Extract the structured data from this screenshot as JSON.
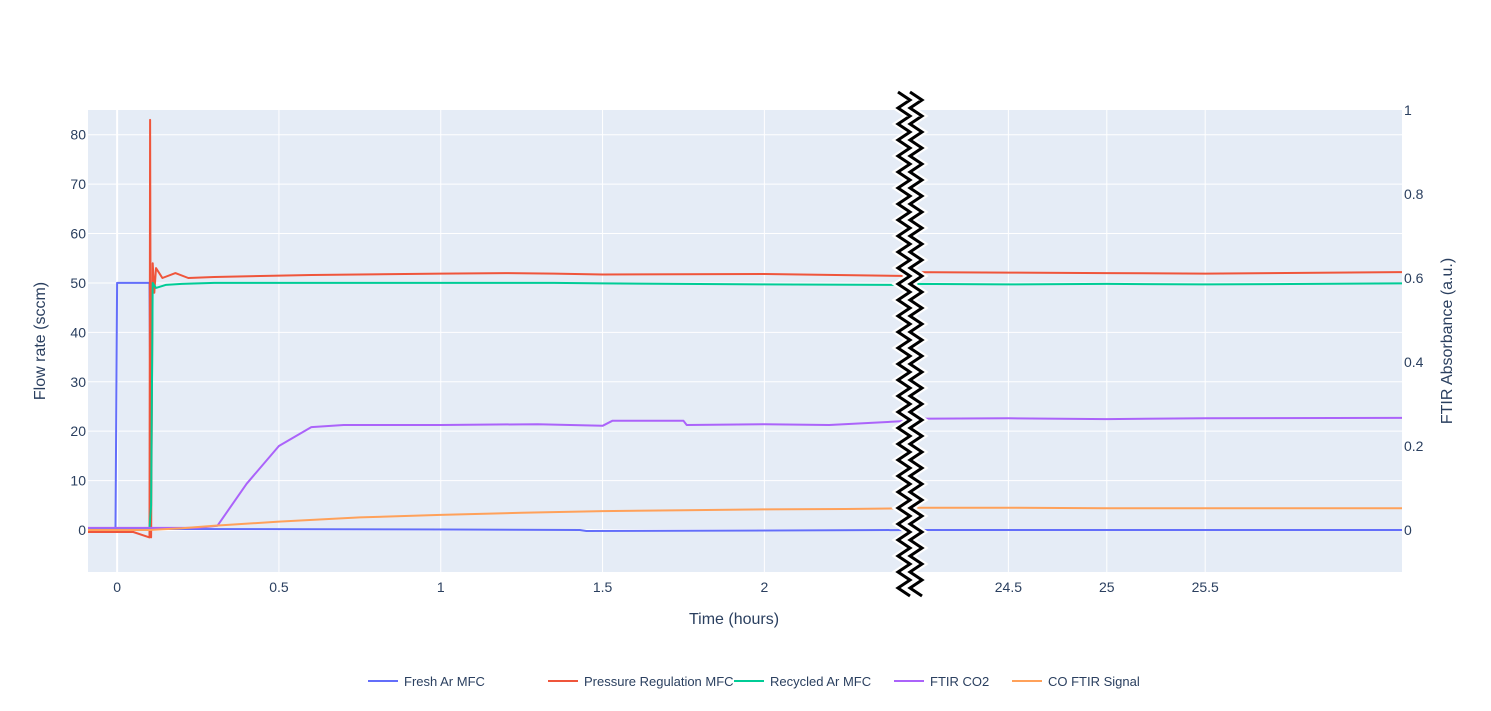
{
  "chart_data": {
    "type": "line",
    "xlabel": "Time (hours)",
    "ylabel": "Flow rate (sccm)",
    "y2label": "FTIR Absorbance (a.u.)",
    "ylim": [
      -8.5,
      85
    ],
    "y2lim": [
      -0.1,
      1.0
    ],
    "grid": true,
    "plot_background": "#e5ecf6",
    "legend_position": "bottom-center",
    "axis_break": "between 2.45 h and 24.0 h",
    "x_segments": [
      {
        "range": [
          -0.09,
          2.45
        ],
        "ticks": [
          0,
          0.5,
          1,
          1.5,
          2
        ],
        "tick_labels": [
          "0",
          "0.5",
          "1",
          "1.5",
          "2"
        ]
      },
      {
        "range": [
          24.0,
          26.5
        ],
        "ticks": [
          24.5,
          25,
          25.5
        ],
        "tick_labels": [
          "24.5",
          "25",
          "25.5"
        ]
      }
    ],
    "y_ticks": [
      0,
      10,
      20,
      30,
      40,
      50,
      60,
      70,
      80
    ],
    "y2_ticks": [
      0,
      0.2,
      0.4,
      0.6,
      0.8,
      1
    ],
    "y2_tick_labels": [
      "0",
      "0.2",
      "0.4",
      "0.6",
      "0.8",
      "1"
    ],
    "series": [
      {
        "name": "Fresh Ar MFC",
        "color": "#636efa",
        "axis": "y",
        "x": [
          -0.09,
          -0.005,
          0.0,
          0.1,
          0.105,
          0.11,
          1.0,
          1.43,
          1.45,
          2.45,
          24.0,
          25.5,
          26.5
        ],
        "y": [
          0.4,
          0.4,
          50,
          50,
          0.2,
          0.2,
          0.1,
          0.0,
          -0.2,
          0.0,
          0.0,
          0.0,
          0.0
        ]
      },
      {
        "name": "Pressure Regulation MFC",
        "color": "#ef553b",
        "axis": "y",
        "x": [
          -0.09,
          0.05,
          0.1,
          0.102,
          0.105,
          0.11,
          0.115,
          0.12,
          0.14,
          0.18,
          0.22,
          0.3,
          0.6,
          1.0,
          1.2,
          1.35,
          1.5,
          2.0,
          2.45,
          24.0,
          24.5,
          25.0,
          25.5,
          26.5
        ],
        "y": [
          -0.4,
          -0.4,
          -1.5,
          83,
          -1.5,
          54,
          48,
          53,
          51,
          52,
          51,
          51.2,
          51.6,
          51.9,
          52,
          51.9,
          51.7,
          51.8,
          51.4,
          52.2,
          52.1,
          52.0,
          51.9,
          52.2
        ]
      },
      {
        "name": "Recycled Ar MFC",
        "color": "#00cc96",
        "axis": "y",
        "x": [
          -0.09,
          0.1,
          0.105,
          0.11,
          0.12,
          0.15,
          0.2,
          0.3,
          0.6,
          1.0,
          1.2,
          1.35,
          1.5,
          2.0,
          2.45,
          24.0,
          24.5,
          25.0,
          25.5,
          26.5
        ],
        "y": [
          0.3,
          0.3,
          5,
          50,
          49,
          49.6,
          49.8,
          50,
          50,
          50,
          50,
          50,
          49.9,
          49.7,
          49.6,
          49.8,
          49.7,
          49.8,
          49.7,
          49.9
        ]
      },
      {
        "name": "FTIR CO2",
        "color": "#ab63fa",
        "axis": "y2",
        "x": [
          -0.09,
          0.25,
          0.31,
          0.4,
          0.5,
          0.6,
          0.7,
          1.0,
          1.3,
          1.5,
          1.53,
          1.75,
          1.76,
          2.0,
          2.2,
          2.45,
          24.0,
          24.5,
          25.0,
          25.5,
          26.5
        ],
        "y": [
          0.005,
          0.005,
          0.01,
          0.11,
          0.2,
          0.245,
          0.25,
          0.25,
          0.252,
          0.248,
          0.26,
          0.26,
          0.25,
          0.252,
          0.25,
          0.26,
          0.265,
          0.266,
          0.264,
          0.266,
          0.267
        ]
      },
      {
        "name": "CO FTIR Signal",
        "color": "#ffa15a",
        "axis": "y2",
        "x": [
          -0.09,
          0.1,
          0.2,
          0.3,
          0.5,
          0.75,
          1.0,
          1.25,
          1.5,
          1.75,
          2.0,
          2.25,
          2.45,
          24.0,
          24.5,
          25.0,
          25.5,
          26.5
        ],
        "y": [
          0.0,
          0.0,
          0.004,
          0.01,
          0.02,
          0.03,
          0.036,
          0.041,
          0.045,
          0.047,
          0.049,
          0.05,
          0.052,
          0.053,
          0.053,
          0.052,
          0.052,
          0.052
        ]
      }
    ]
  }
}
